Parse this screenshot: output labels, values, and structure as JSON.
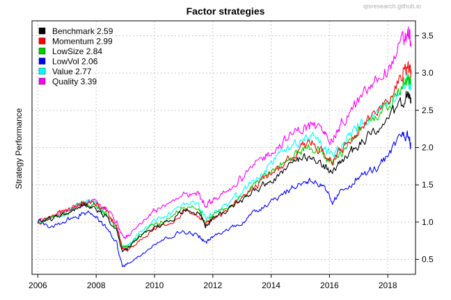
{
  "chart_data": {
    "type": "line",
    "title": "Factor strategies",
    "watermark": "qisresearch.github.io",
    "xlabel": "",
    "ylabel": "Strategy Performance",
    "xlim": [
      2005.8,
      2018.95
    ],
    "ylim": [
      0.3,
      3.7
    ],
    "x_ticks": [
      2006,
      2008,
      2010,
      2012,
      2014,
      2016,
      2018
    ],
    "y_ticks": [
      0.5,
      1.0,
      1.5,
      2.0,
      2.5,
      3.0,
      3.5
    ],
    "y_tick_labels": [
      "0.5",
      "1.0",
      "1.5",
      "2.0",
      "2.5",
      "3.0",
      "3.5"
    ],
    "grid": true,
    "y_axis_side": "right",
    "legend_position": "top-left",
    "x": [
      2006.0,
      2006.5,
      2007.0,
      2007.5,
      2007.9,
      2008.3,
      2008.7,
      2008.9,
      2009.1,
      2009.5,
      2010.0,
      2010.5,
      2011.0,
      2011.5,
      2011.75,
      2012.0,
      2012.5,
      2013.0,
      2013.5,
      2014.0,
      2014.5,
      2015.0,
      2015.4,
      2015.8,
      2016.1,
      2016.5,
      2017.0,
      2017.5,
      2018.0,
      2018.5,
      2018.7,
      2018.8
    ],
    "series": [
      {
        "name": "Benchmark",
        "legend": "Benchmark 2.59",
        "color": "#000000",
        "values": [
          1.0,
          1.05,
          1.12,
          1.22,
          1.22,
          1.1,
          0.9,
          0.6,
          0.65,
          0.8,
          0.95,
          1.0,
          1.15,
          1.12,
          0.95,
          1.05,
          1.15,
          1.3,
          1.45,
          1.55,
          1.7,
          1.82,
          1.85,
          1.75,
          1.68,
          1.85,
          2.05,
          2.2,
          2.35,
          2.6,
          2.7,
          2.59
        ]
      },
      {
        "name": "Momentum",
        "legend": "Momentum 2.99",
        "color": "#ff0000",
        "values": [
          1.0,
          1.07,
          1.15,
          1.27,
          1.27,
          1.15,
          0.95,
          0.65,
          0.62,
          0.75,
          0.92,
          0.97,
          1.13,
          1.1,
          0.97,
          1.05,
          1.17,
          1.33,
          1.5,
          1.65,
          1.8,
          1.97,
          2.05,
          1.92,
          1.82,
          2.0,
          2.25,
          2.45,
          2.65,
          3.0,
          3.1,
          2.99
        ]
      },
      {
        "name": "LowSize",
        "legend": "LowSize 2.84",
        "color": "#00cc00",
        "values": [
          1.0,
          1.06,
          1.13,
          1.24,
          1.24,
          1.13,
          0.93,
          0.66,
          0.68,
          0.82,
          0.98,
          1.04,
          1.2,
          1.17,
          1.0,
          1.08,
          1.2,
          1.35,
          1.52,
          1.66,
          1.82,
          1.97,
          2.02,
          1.9,
          1.8,
          1.97,
          2.2,
          2.38,
          2.55,
          2.85,
          2.95,
          2.84
        ]
      },
      {
        "name": "LowVol",
        "legend": "LowVol 2.06",
        "color": "#0000ff",
        "values": [
          0.98,
          0.95,
          1.02,
          1.12,
          1.1,
          0.95,
          0.72,
          0.4,
          0.45,
          0.55,
          0.72,
          0.8,
          0.88,
          0.82,
          0.72,
          0.8,
          0.9,
          1.0,
          1.15,
          1.3,
          1.4,
          1.52,
          1.58,
          1.45,
          1.25,
          1.45,
          1.6,
          1.7,
          1.85,
          2.18,
          2.15,
          2.06
        ]
      },
      {
        "name": "Value",
        "legend": "Value 2.77",
        "color": "#00ffff",
        "values": [
          1.0,
          1.06,
          1.13,
          1.26,
          1.26,
          1.12,
          0.9,
          0.65,
          0.7,
          0.85,
          1.02,
          1.1,
          1.25,
          1.22,
          1.05,
          1.12,
          1.22,
          1.4,
          1.6,
          1.78,
          1.95,
          2.1,
          2.15,
          2.0,
          1.88,
          2.05,
          2.3,
          2.45,
          2.6,
          2.85,
          2.9,
          2.77
        ]
      },
      {
        "name": "Quality",
        "legend": "Quality 3.39",
        "color": "#ff00ff",
        "values": [
          1.0,
          1.06,
          1.14,
          1.25,
          1.27,
          1.18,
          1.02,
          0.8,
          0.82,
          0.98,
          1.15,
          1.25,
          1.4,
          1.38,
          1.2,
          1.3,
          1.42,
          1.6,
          1.78,
          1.95,
          2.1,
          2.25,
          2.3,
          2.2,
          2.12,
          2.35,
          2.62,
          2.85,
          3.05,
          3.4,
          3.55,
          3.39
        ]
      }
    ]
  }
}
